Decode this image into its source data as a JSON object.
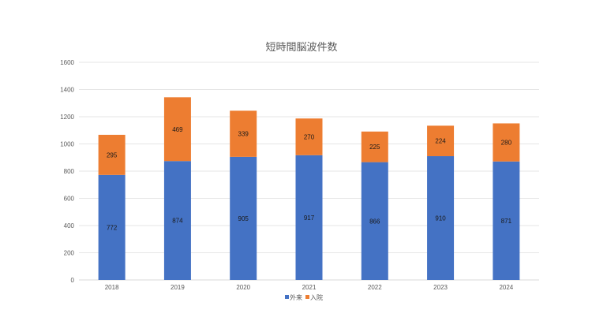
{
  "chart_data": {
    "type": "bar",
    "stacked": true,
    "title": "短時間脳波件数",
    "categories": [
      "2018",
      "2019",
      "2020",
      "2021",
      "2022",
      "2023",
      "2024"
    ],
    "series": [
      {
        "name": "外来",
        "color": "#4472C4",
        "values": [
          772,
          874,
          905,
          917,
          866,
          910,
          871
        ]
      },
      {
        "name": "入院",
        "color": "#ED7D31",
        "values": [
          295,
          469,
          339,
          270,
          225,
          224,
          280
        ]
      }
    ],
    "ylim": [
      0,
      1600
    ],
    "yticks": [
      0,
      200,
      400,
      600,
      800,
      1000,
      1200,
      1400,
      1600
    ],
    "grid": true,
    "legend_position": "bottom",
    "data_labels": true
  }
}
